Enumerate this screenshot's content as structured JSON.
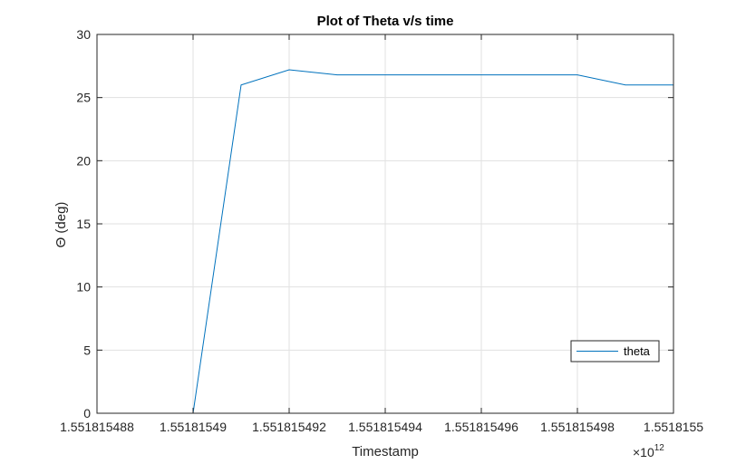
{
  "chart_data": {
    "type": "line",
    "title": "Plot of Theta v/s time",
    "xlabel": "Timestamp",
    "ylabel": "Θ (deg)",
    "x_exponent_label": "×10",
    "x_exponent_power": "12",
    "xlim": [
      1.551815488,
      1.5518155
    ],
    "ylim": [
      0,
      30
    ],
    "xticks": [
      1.551815488,
      1.55181549,
      1.551815492,
      1.551815494,
      1.551815496,
      1.551815498,
      1.5518155
    ],
    "xtick_labels": [
      "1.551815488",
      "1.55181549",
      "1.551815492",
      "1.551815494",
      "1.551815496",
      "1.551815498",
      "1.5518155"
    ],
    "yticks": [
      0,
      5,
      10,
      15,
      20,
      25,
      30
    ],
    "ytick_labels": [
      "0",
      "5",
      "10",
      "15",
      "20",
      "25",
      "30"
    ],
    "grid": true,
    "legend_position": "lower-right",
    "colors": {
      "series": "#0072BD",
      "grid": "#e1e1e1",
      "axis": "#262626"
    },
    "series": [
      {
        "name": "theta",
        "x": [
          1.5518154888,
          1.55181549,
          1.551815491,
          1.551815492,
          1.551815493,
          1.551815494,
          1.551815495,
          1.551815496,
          1.551815497,
          1.551815498,
          1.551815499,
          1.5518155
        ],
        "y": [
          0,
          0,
          26.0,
          27.2,
          26.8,
          26.8,
          26.8,
          26.8,
          26.8,
          26.8,
          26.0,
          26.0
        ]
      }
    ]
  }
}
